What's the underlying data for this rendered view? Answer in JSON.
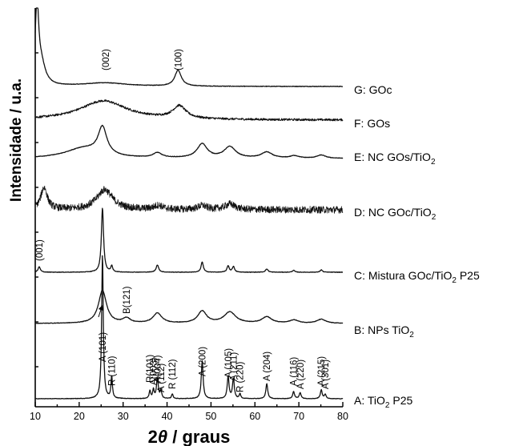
{
  "chart_data": {
    "type": "line",
    "title": "",
    "xlabel": "2θ / graus",
    "xlabel_parts": [
      "2",
      "θ",
      " / graus"
    ],
    "ylabel": "Intensidade / u.a.",
    "xlim": [
      10,
      80
    ],
    "x_ticks": [
      10,
      20,
      30,
      40,
      50,
      60,
      70,
      80
    ],
    "grid": false,
    "y_ticks_labeled": false,
    "series": [
      {
        "name": "G: GOc",
        "label_parts": [
          "G: GOc"
        ],
        "noise": "low",
        "baseline": 0.0,
        "peaks": [
          {
            "pos": 10.4,
            "height": 1.75,
            "width": 0.45
          },
          {
            "pos": 11.3,
            "height": 0.5,
            "width": 1.2
          },
          {
            "pos": 25.8,
            "height": 0.08,
            "width": 6
          },
          {
            "pos": 42.5,
            "height": 0.36,
            "width": 0.9
          }
        ]
      },
      {
        "name": "F: GOs",
        "label_parts": [
          "F: GOs"
        ],
        "noise": "medium",
        "baseline": 0.0,
        "peaks": [
          {
            "pos": 25.5,
            "height": 0.46,
            "width": 6.5
          },
          {
            "pos": 42.8,
            "height": 0.3,
            "width": 1.8
          }
        ]
      },
      {
        "name": "E: NC GOs/TiO2",
        "label_parts": [
          "E: NC GOs/TiO",
          "2"
        ],
        "noise": "low",
        "baseline": 0.0,
        "peaks": [
          {
            "pos": 21.0,
            "height": 0.25,
            "width": 5
          },
          {
            "pos": 25.3,
            "height": 0.68,
            "width": 1.2
          },
          {
            "pos": 37.8,
            "height": 0.12,
            "width": 1.2
          },
          {
            "pos": 48.0,
            "height": 0.35,
            "width": 1.4
          },
          {
            "pos": 54.3,
            "height": 0.28,
            "width": 1.6
          },
          {
            "pos": 62.7,
            "height": 0.15,
            "width": 1.5
          },
          {
            "pos": 69.0,
            "height": 0.06,
            "width": 1.2
          },
          {
            "pos": 75.1,
            "height": 0.08,
            "width": 1.2
          }
        ]
      },
      {
        "name": "D: NC GOc/TiO2",
        "label_parts": [
          "D: NC GOc/TiO",
          "2"
        ],
        "noise": "high",
        "baseline": 0.0,
        "peaks": [
          {
            "pos": 12.0,
            "height": 0.55,
            "width": 0.9
          },
          {
            "pos": 25.8,
            "height": 0.5,
            "width": 2.2
          },
          {
            "pos": 38.0,
            "height": 0.1,
            "width": 1.2
          },
          {
            "pos": 48.0,
            "height": 0.1,
            "width": 1.2
          },
          {
            "pos": 54.3,
            "height": 0.14,
            "width": 1.4
          }
        ]
      },
      {
        "name": "C: Mistura GOc/TiO2 P25",
        "label_parts": [
          "C: Mistura GOc/TiO",
          "2",
          " P25"
        ],
        "noise": "low",
        "baseline": 0.0,
        "peaks": [
          {
            "pos": 10.9,
            "height": 0.14,
            "width": 0.3
          },
          {
            "pos": 25.3,
            "height": 1.6,
            "width": 0.3
          },
          {
            "pos": 27.4,
            "height": 0.15,
            "width": 0.25
          },
          {
            "pos": 37.8,
            "height": 0.18,
            "width": 0.35
          },
          {
            "pos": 48.0,
            "height": 0.26,
            "width": 0.3
          },
          {
            "pos": 53.9,
            "height": 0.16,
            "width": 0.3
          },
          {
            "pos": 55.1,
            "height": 0.14,
            "width": 0.3
          },
          {
            "pos": 62.7,
            "height": 0.08,
            "width": 0.35
          },
          {
            "pos": 68.8,
            "height": 0.05,
            "width": 0.3
          },
          {
            "pos": 75.1,
            "height": 0.06,
            "width": 0.3
          }
        ]
      },
      {
        "name": "B: NPs TiO2",
        "label_parts": [
          "B: NPs TiO",
          "2"
        ],
        "noise": "low",
        "baseline": 0.0,
        "peaks": [
          {
            "pos": 25.3,
            "height": 0.82,
            "width": 1.1
          },
          {
            "pos": 30.8,
            "height": 0.12,
            "width": 1.0
          },
          {
            "pos": 37.8,
            "height": 0.25,
            "width": 1.2
          },
          {
            "pos": 48.0,
            "height": 0.3,
            "width": 1.2
          },
          {
            "pos": 54.3,
            "height": 0.28,
            "width": 1.6
          },
          {
            "pos": 62.7,
            "height": 0.16,
            "width": 1.3
          },
          {
            "pos": 68.9,
            "height": 0.08,
            "width": 1.2
          },
          {
            "pos": 75.1,
            "height": 0.1,
            "width": 1.2
          }
        ]
      },
      {
        "name": "A: TiO2 P25",
        "label_parts": [
          "A: TiO",
          "2",
          " P25"
        ],
        "noise": "low",
        "baseline": 0.0,
        "peaks": [
          {
            "pos": 25.3,
            "height": 3.6,
            "width": 0.22
          },
          {
            "pos": 27.4,
            "height": 0.55,
            "width": 0.2
          },
          {
            "pos": 36.1,
            "height": 0.2,
            "width": 0.2
          },
          {
            "pos": 36.9,
            "height": 0.22,
            "width": 0.2
          },
          {
            "pos": 37.8,
            "height": 0.5,
            "width": 0.25
          },
          {
            "pos": 38.6,
            "height": 0.2,
            "width": 0.2
          },
          {
            "pos": 41.2,
            "height": 0.12,
            "width": 0.2
          },
          {
            "pos": 48.0,
            "height": 0.95,
            "width": 0.25
          },
          {
            "pos": 53.9,
            "height": 0.55,
            "width": 0.25
          },
          {
            "pos": 55.1,
            "height": 0.5,
            "width": 0.25
          },
          {
            "pos": 56.6,
            "height": 0.12,
            "width": 0.2
          },
          {
            "pos": 62.7,
            "height": 0.38,
            "width": 0.25
          },
          {
            "pos": 68.8,
            "height": 0.18,
            "width": 0.25
          },
          {
            "pos": 70.3,
            "height": 0.15,
            "width": 0.25
          },
          {
            "pos": 75.1,
            "height": 0.22,
            "width": 0.25
          },
          {
            "pos": 76.0,
            "height": 0.1,
            "width": 0.25
          }
        ]
      }
    ],
    "annotations": [
      {
        "text": "(002)",
        "x": 26.0,
        "series": "G: GOc"
      },
      {
        "text": "(100)",
        "x": 42.5,
        "series": "G: GOc"
      },
      {
        "text": "(001)",
        "x": 10.9,
        "series": "C: Mistura GOc/TiO2 P25"
      },
      {
        "text": "B(121)",
        "x": 30.8,
        "series": "B: NPs TiO2"
      },
      {
        "text": "A (101)",
        "x": 25.3,
        "series": "A: TiO2 P25"
      },
      {
        "text": "R (110)",
        "x": 27.4,
        "series": "A: TiO2 P25"
      },
      {
        "text": "R(101)",
        "x": 36.1,
        "series": "A: TiO2 P25"
      },
      {
        "text": "A(003)",
        "x": 36.9,
        "series": "A: TiO2 P25"
      },
      {
        "text": "A(004)",
        "x": 37.8,
        "series": "A: TiO2 P25"
      },
      {
        "text": "A (112)",
        "x": 38.6,
        "series": "A: TiO2 P25"
      },
      {
        "text": "R (112)",
        "x": 41.2,
        "series": "A: TiO2 P25"
      },
      {
        "text": "A (200)",
        "x": 48.0,
        "series": "A: TiO2 P25"
      },
      {
        "text": "A (105)",
        "x": 53.9,
        "series": "A: TiO2 P25"
      },
      {
        "text": "A (211)",
        "x": 55.1,
        "series": "A: TiO2 P25"
      },
      {
        "text": "R (220)",
        "x": 56.6,
        "series": "A: TiO2 P25"
      },
      {
        "text": "A (204)",
        "x": 62.7,
        "series": "A: TiO2 P25"
      },
      {
        "text": "A (116)",
        "x": 68.8,
        "series": "A: TiO2 P25"
      },
      {
        "text": "A (220)",
        "x": 70.3,
        "series": "A: TiO2 P25"
      },
      {
        "text": "A (215)",
        "x": 75.1,
        "series": "A: TiO2 P25"
      },
      {
        "text": "A (301)",
        "x": 76.0,
        "series": "A: TiO2 P25"
      }
    ]
  }
}
